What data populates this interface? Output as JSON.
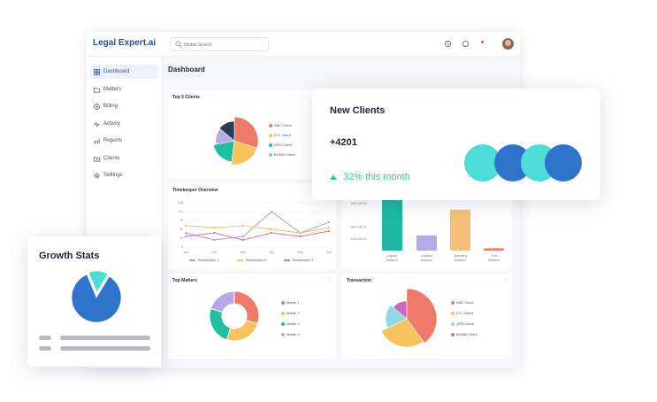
{
  "app": {
    "logo": "Legal Expert.ai",
    "search_placeholder": "Global Search"
  },
  "sidebar": {
    "items": [
      {
        "label": "Dashboard",
        "icon": "grid-icon",
        "active": true
      },
      {
        "label": "Matters",
        "icon": "folder-icon",
        "active": false
      },
      {
        "label": "Billing",
        "icon": "dollar-icon",
        "active": false
      },
      {
        "label": "Activity",
        "icon": "pulse-icon",
        "active": false
      },
      {
        "label": "Reports",
        "icon": "report-icon",
        "active": false
      },
      {
        "label": "Clients",
        "icon": "clients-icon",
        "active": false
      },
      {
        "label": "Settings",
        "icon": "gear-icon",
        "active": false
      }
    ]
  },
  "dashboard": {
    "title": "Dashboard",
    "top_clients": {
      "title": "Top 5 Clients"
    },
    "timekeeper": {
      "title": "Timekeeper Overview"
    },
    "top_matters": {
      "title": "Top Matters"
    },
    "transaction": {
      "title": "Transaction"
    }
  },
  "new_clients": {
    "title": "New Clients",
    "value": "+4201",
    "trend": "32% this month",
    "circle_colors": [
      "#4dddd8",
      "#2f74cc",
      "#4dddd8",
      "#2f74cc"
    ]
  },
  "growth_stats": {
    "title": "Growth Stats"
  },
  "colors": {
    "accent": "#2f4fb0",
    "trend_green": "#2ecb98"
  },
  "chart_data": [
    {
      "type": "pie",
      "title": "Top 5 Clients",
      "labels": [
        "ABC Client",
        "DTL Client",
        "QRS Client",
        "BGMM Client",
        ""
      ],
      "values": [
        30,
        22,
        20,
        14,
        14
      ],
      "colors": [
        "#f07a6a",
        "#f7c35c",
        "#1fbfa0",
        "#b7a9e6",
        "#2b3b5c"
      ]
    },
    {
      "type": "line",
      "title": "Timekeeper Overview",
      "categories": [
        "Jan",
        "Feb",
        "Mar",
        "Apr",
        "May",
        "Jun"
      ],
      "yticks": [
        0,
        25,
        50,
        75,
        100,
        125
      ],
      "ylim": [
        0,
        125
      ],
      "series": [
        {
          "name": "Timekeeper 1",
          "color": "#a99be8",
          "values": [
            40,
            20,
            30,
            100,
            40,
            70
          ]
        },
        {
          "name": "Timekeeper 2",
          "color": "#f7c35c",
          "values": [
            60,
            55,
            60,
            50,
            40,
            55
          ]
        },
        {
          "name": "Timekeeper 3",
          "color": "#ee6aa7",
          "values": [
            30,
            40,
            20,
            40,
            30,
            45
          ]
        }
      ]
    },
    {
      "type": "bar",
      "categories": [
        "Unpaid Balance",
        "Unbilled Balance",
        "Operating Retainer",
        "Trust Retainer"
      ],
      "values": [
        450000,
        130000,
        350000,
        20000
      ],
      "colors": [
        "#1fb8a0",
        "#b7a9e6",
        "#f7c07a",
        "#f07a6a"
      ],
      "yticks": [
        "$400,000.00",
        "$200,000.00",
        "$100,000.00"
      ],
      "ylim": [
        0,
        500000
      ]
    },
    {
      "type": "pie",
      "title": "Top Matters",
      "labels": [
        "Matter 1",
        "Matter 2",
        "Matter 3",
        "Matter 4"
      ],
      "values": [
        30,
        25,
        25,
        20
      ],
      "colors": [
        "#f07a6a",
        "#f7c35c",
        "#1fbfa0",
        "#b7a9e6"
      ]
    },
    {
      "type": "pie",
      "title": "Transaction",
      "labels": [
        "ABC Client",
        "DTL Client",
        "QRS Client",
        "BGMM Client"
      ],
      "values": [
        40,
        28,
        18,
        14
      ],
      "colors": [
        "#f07a6a",
        "#f7c35c",
        "#8fd8e8",
        "#c46ac0"
      ]
    },
    {
      "type": "pie",
      "title": "Growth Stats",
      "values": [
        85,
        15
      ],
      "colors": [
        "#2f74cc",
        "#4dddd8"
      ]
    }
  ]
}
